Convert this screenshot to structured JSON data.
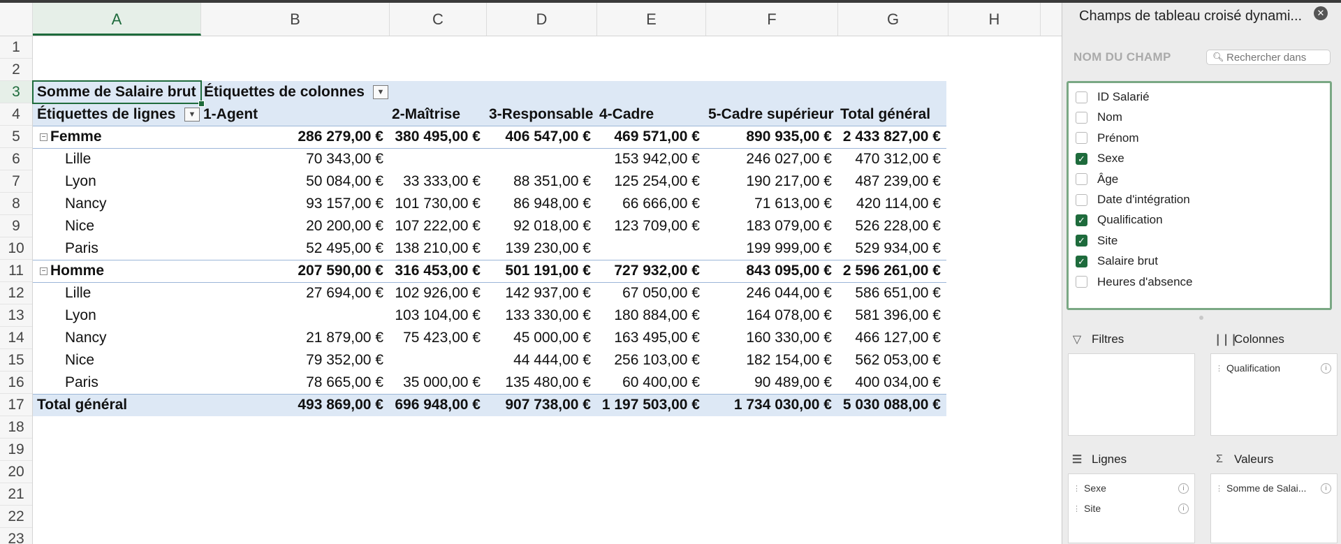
{
  "columns": [
    "A",
    "B",
    "C",
    "D",
    "E",
    "F",
    "G",
    "H"
  ],
  "rows": [
    "1",
    "2",
    "3",
    "4",
    "5",
    "6",
    "7",
    "8",
    "9",
    "10",
    "11",
    "12",
    "13",
    "14",
    "15",
    "16",
    "17",
    "18",
    "19",
    "20",
    "21",
    "22",
    "23"
  ],
  "pivot": {
    "corner_label": "Somme de Salaire brut",
    "col_labels_title": "Étiquettes de colonnes",
    "row_labels_title": "Étiquettes de lignes",
    "headers": [
      "1-Agent",
      "2-Maîtrise",
      "3-Responsable",
      "4-Cadre",
      "5-Cadre supérieur",
      "Total général"
    ],
    "body": [
      {
        "label": "Femme",
        "group": true,
        "values": [
          "286 279,00 €",
          "380 495,00 €",
          "406 547,00 €",
          "469 571,00 €",
          "890 935,00 €",
          "2 433 827,00 €"
        ]
      },
      {
        "label": "Lille",
        "group": false,
        "values": [
          "70 343,00 €",
          "",
          "",
          "153 942,00 €",
          "246 027,00 €",
          "470 312,00 €"
        ]
      },
      {
        "label": "Lyon",
        "group": false,
        "values": [
          "50 084,00 €",
          "33 333,00 €",
          "88 351,00 €",
          "125 254,00 €",
          "190 217,00 €",
          "487 239,00 €"
        ]
      },
      {
        "label": "Nancy",
        "group": false,
        "values": [
          "93 157,00 €",
          "101 730,00 €",
          "86 948,00 €",
          "66 666,00 €",
          "71 613,00 €",
          "420 114,00 €"
        ]
      },
      {
        "label": "Nice",
        "group": false,
        "values": [
          "20 200,00 €",
          "107 222,00 €",
          "92 018,00 €",
          "123 709,00 €",
          "183 079,00 €",
          "526 228,00 €"
        ]
      },
      {
        "label": "Paris",
        "group": false,
        "values": [
          "52 495,00 €",
          "138 210,00 €",
          "139 230,00 €",
          "",
          "199 999,00 €",
          "529 934,00 €"
        ]
      },
      {
        "label": "Homme",
        "group": true,
        "values": [
          "207 590,00 €",
          "316 453,00 €",
          "501 191,00 €",
          "727 932,00 €",
          "843 095,00 €",
          "2 596 261,00 €"
        ]
      },
      {
        "label": "Lille",
        "group": false,
        "values": [
          "27 694,00 €",
          "102 926,00 €",
          "142 937,00 €",
          "67 050,00 €",
          "246 044,00 €",
          "586 651,00 €"
        ]
      },
      {
        "label": "Lyon",
        "group": false,
        "values": [
          "",
          "103 104,00 €",
          "133 330,00 €",
          "180 884,00 €",
          "164 078,00 €",
          "581 396,00 €"
        ]
      },
      {
        "label": "Nancy",
        "group": false,
        "values": [
          "21 879,00 €",
          "75 423,00 €",
          "45 000,00 €",
          "163 495,00 €",
          "160 330,00 €",
          "466 127,00 €"
        ]
      },
      {
        "label": "Nice",
        "group": false,
        "values": [
          "79 352,00 €",
          "",
          "44 444,00 €",
          "256 103,00 €",
          "182 154,00 €",
          "562 053,00 €"
        ]
      },
      {
        "label": "Paris",
        "group": false,
        "values": [
          "78 665,00 €",
          "35 000,00 €",
          "135 480,00 €",
          "60 400,00 €",
          "90 489,00 €",
          "400 034,00 €"
        ]
      }
    ],
    "total": {
      "label": "Total général",
      "values": [
        "493 869,00 €",
        "696 948,00 €",
        "907 738,00 €",
        "1 197 503,00 €",
        "1 734 030,00 €",
        "5 030 088,00 €"
      ]
    }
  },
  "panel": {
    "title": "Champs de tableau croisé dynami...",
    "field_name_header": "NOM DU CHAMP",
    "search_placeholder": "Rechercher dans",
    "fields": [
      {
        "label": "ID Salarié",
        "checked": false
      },
      {
        "label": "Nom",
        "checked": false
      },
      {
        "label": "Prénom",
        "checked": false
      },
      {
        "label": "Sexe",
        "checked": true
      },
      {
        "label": "Âge",
        "checked": false
      },
      {
        "label": "Date d'intégration",
        "checked": false
      },
      {
        "label": "Qualification",
        "checked": true
      },
      {
        "label": "Site",
        "checked": true
      },
      {
        "label": "Salaire brut",
        "checked": true
      },
      {
        "label": "Heures d'absence",
        "checked": false
      }
    ],
    "areas": {
      "filters": {
        "label": "Filtres",
        "items": []
      },
      "columns": {
        "label": "Colonnes",
        "items": [
          "Qualification"
        ]
      },
      "rows": {
        "label": "Lignes",
        "items": [
          "Sexe",
          "Site"
        ]
      },
      "values": {
        "label": "Valeurs",
        "items": [
          "Somme de Salai..."
        ]
      }
    }
  },
  "colors": {
    "accent": "#1e6b3c",
    "pivot_band": "#dde8f5",
    "panel_bg": "#ececec"
  }
}
